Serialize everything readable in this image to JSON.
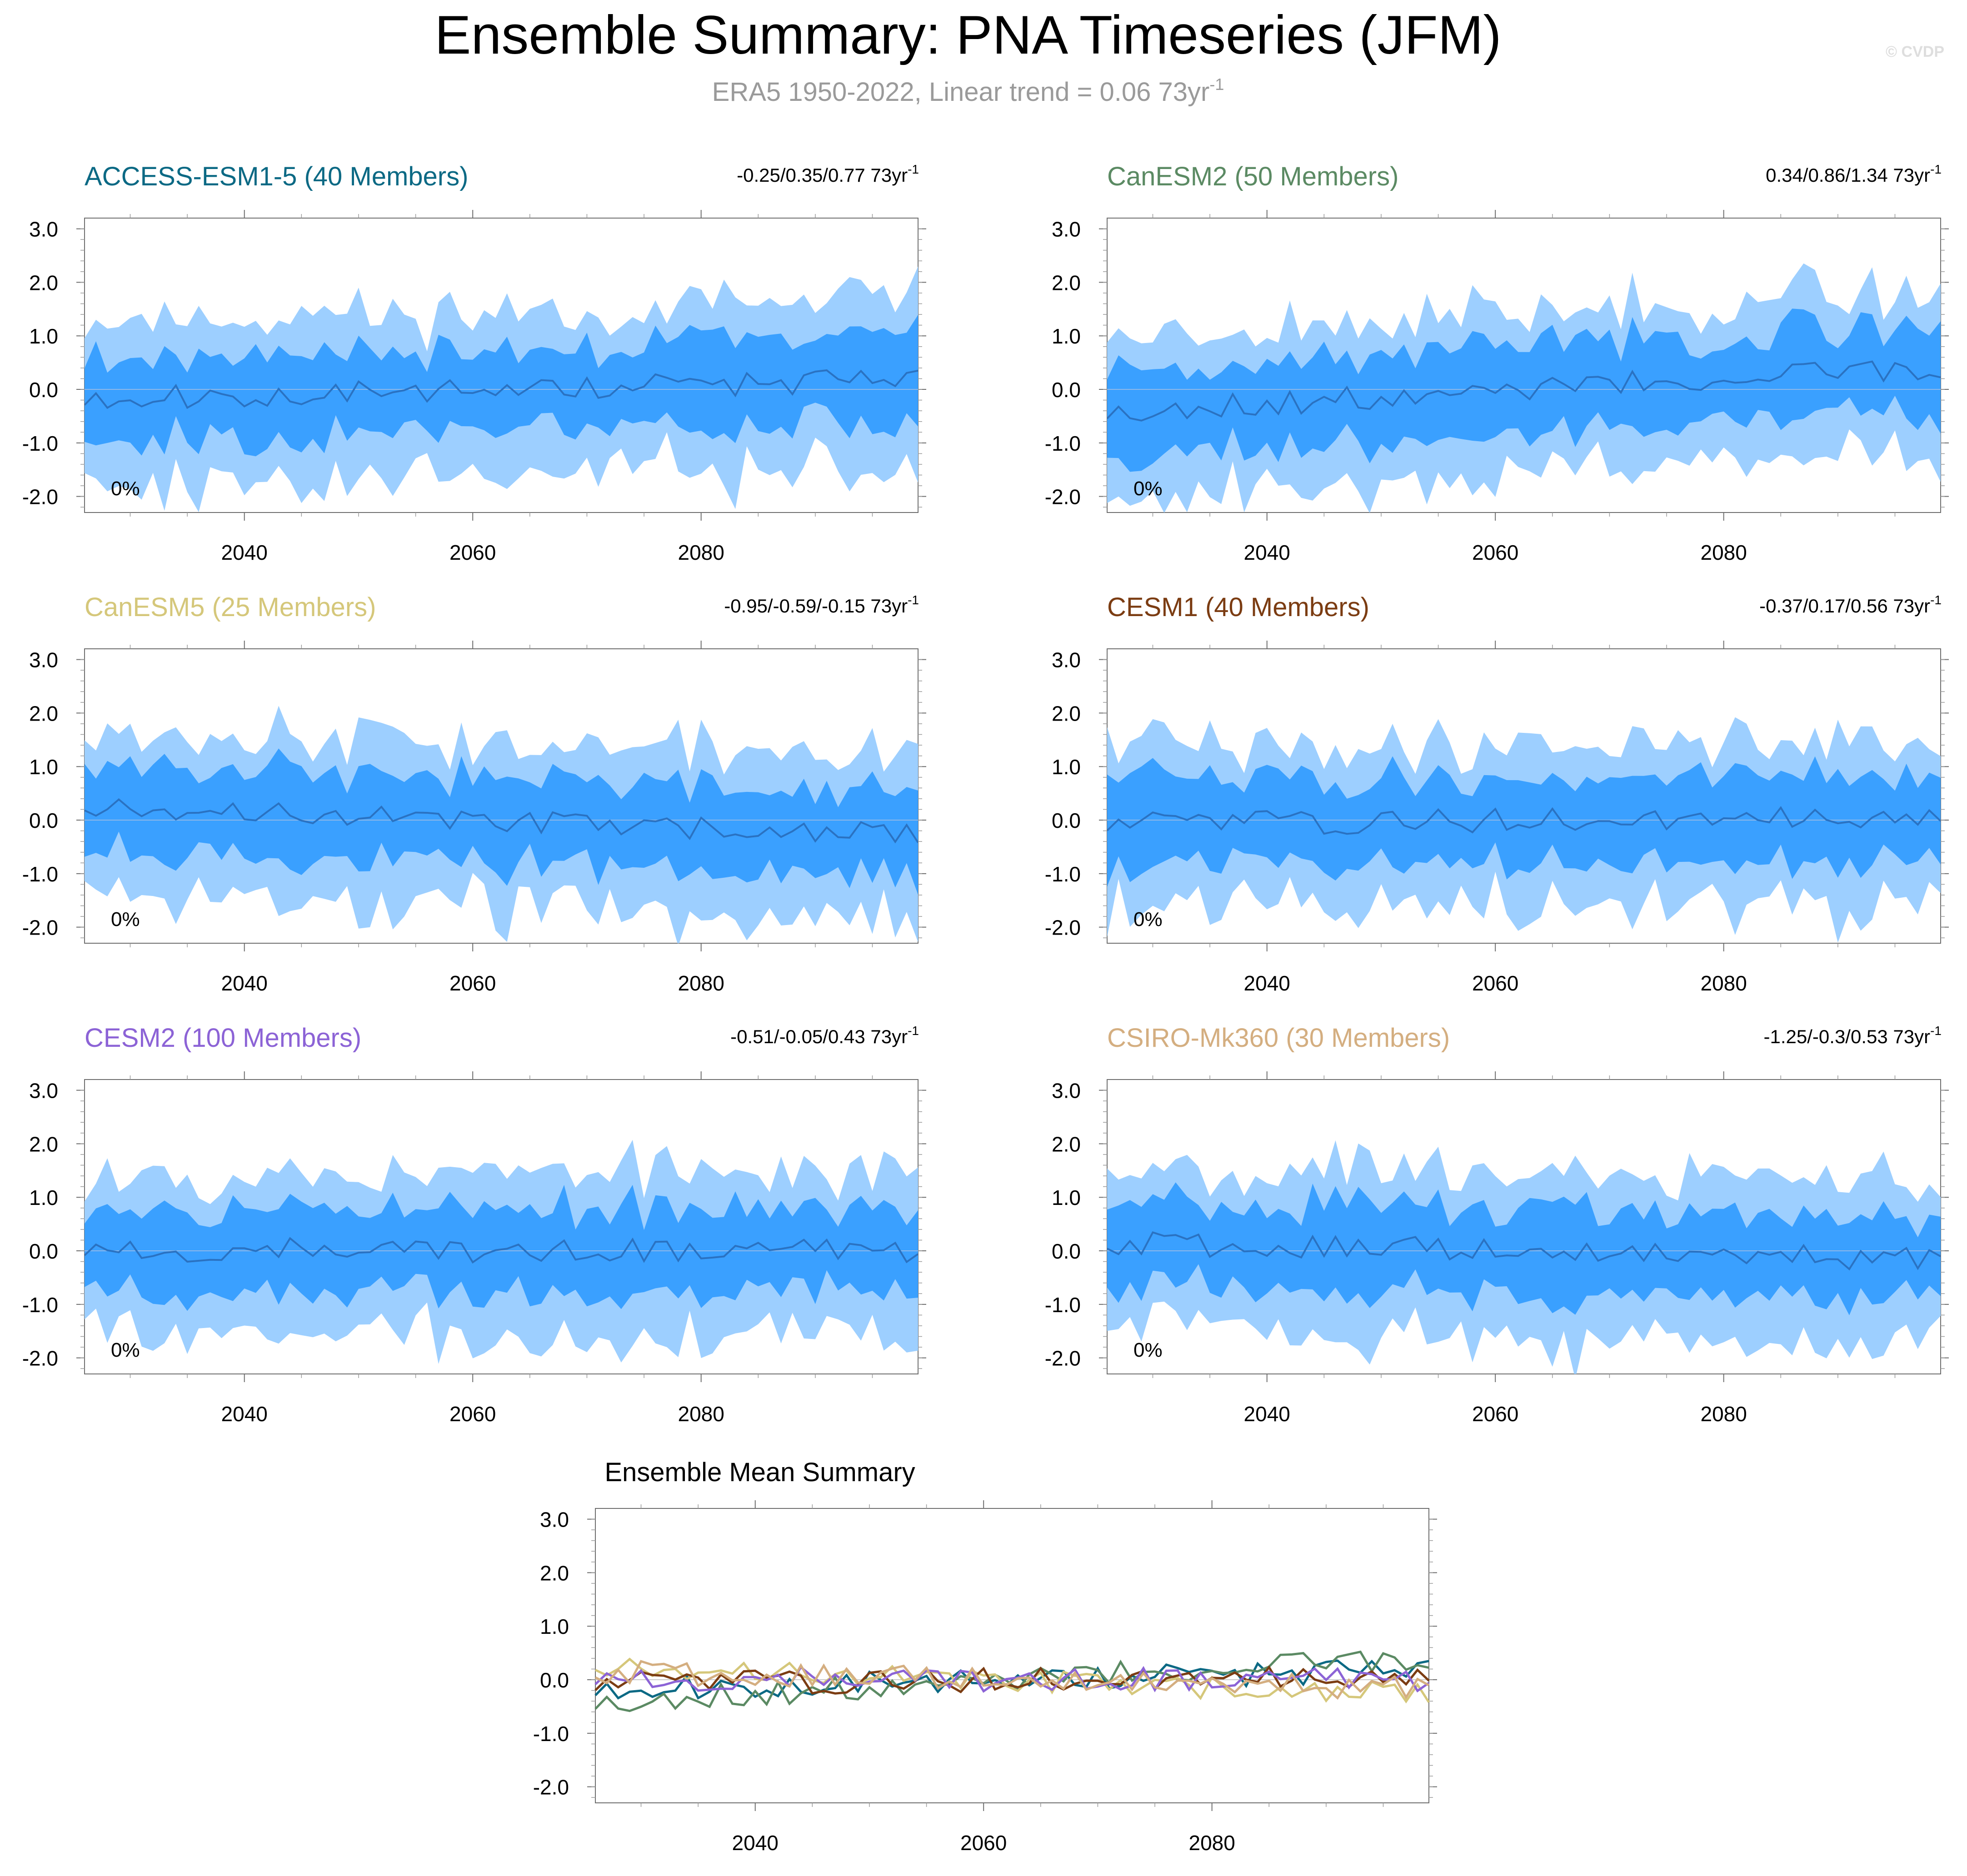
{
  "title": "Ensemble Summary: PNA Timeseries (JFM)",
  "subtitle": "ERA5 1950-2022, Linear trend = 0.06 73yr",
  "subtitle_sup": "-1",
  "watermark": "© CVDP",
  "trend_unit_sup": "-1",
  "chart_data": {
    "type": "area",
    "x_range": [
      2026,
      2099
    ],
    "ylim": [
      -2.3,
      3.2
    ],
    "x_ticks": [
      2040,
      2060,
      2080
    ],
    "x_tick_labels": [
      "2040",
      "2060",
      "2080"
    ],
    "y_ticks": [
      3.0,
      2.0,
      1.0,
      0.0,
      -1.0,
      -2.0
    ],
    "y_tick_labels": [
      "3.0",
      "2.0",
      "1.0",
      "0.0",
      "-1.0",
      "-2.0"
    ],
    "band_colors": {
      "outer": "#9dcfff",
      "inner": "#3aa0ff",
      "mean_line": "#2a72c2",
      "zero_line": "#8fb8e8"
    },
    "models": [
      {
        "name": "ACCESS-ESM1-5 (40 Members)",
        "color": "#0b6984",
        "trend_text": "-0.25/0.35/0.77 73yr",
        "pct_label": "0%",
        "mean_trend": 0.35,
        "seed": 11
      },
      {
        "name": "CanESM2 (50 Members)",
        "color": "#5b8a63",
        "trend_text": "0.34/0.86/1.34 73yr",
        "pct_label": "0%",
        "mean_trend": 0.86,
        "seed": 23
      },
      {
        "name": "CanESM5 (25 Members)",
        "color": "#d5c77a",
        "trend_text": "-0.95/-0.59/-0.15 73yr",
        "pct_label": "0%",
        "mean_trend": -0.59,
        "seed": 37
      },
      {
        "name": "CESM1 (40 Members)",
        "color": "#7b3c12",
        "trend_text": "-0.37/0.17/0.56 73yr",
        "pct_label": "0%",
        "mean_trend": 0.17,
        "seed": 41
      },
      {
        "name": "CESM2 (100 Members)",
        "color": "#8c63d6",
        "trend_text": "-0.51/-0.05/0.43 73yr",
        "pct_label": "0%",
        "mean_trend": -0.05,
        "seed": 53
      },
      {
        "name": "CSIRO-Mk360 (30 Members)",
        "color": "#d4ae80",
        "trend_text": "-1.25/-0.3/0.53 73yr",
        "pct_label": "0%",
        "mean_trend": -0.3,
        "seed": 67
      }
    ],
    "summary": {
      "title": "Ensemble Mean Summary"
    }
  }
}
